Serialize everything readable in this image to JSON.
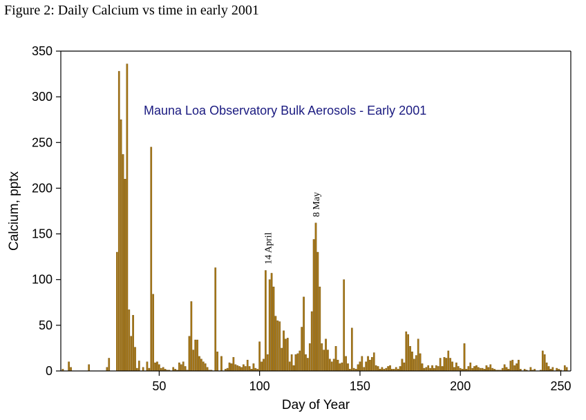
{
  "figure_caption": "Figure 2: Daily Calcium vs time in early 2001",
  "colors": {
    "bar": "#a87816",
    "bar_edge": "#6b4a08",
    "title": "#1a1a80",
    "axis": "#000000"
  },
  "chart_data": {
    "type": "bar",
    "title": "Mauna Loa Observatory Bulk Aerosols - Early 2001",
    "xlabel": "Day of Year",
    "ylabel": "Calcium, pptx",
    "xlim": [
      1,
      255
    ],
    "ylim": [
      0,
      350
    ],
    "xticks": [
      50,
      100,
      150,
      200,
      250
    ],
    "yticks": [
      0,
      50,
      100,
      150,
      200,
      250,
      300,
      350
    ],
    "grid": false,
    "annotations": [
      {
        "text": "14 April",
        "x": 104,
        "y": 112
      },
      {
        "text": "8 May",
        "x": 128,
        "y": 164
      }
    ],
    "x": [
      2,
      5,
      6,
      15,
      24,
      25,
      29,
      30,
      31,
      32,
      33,
      34,
      35,
      36,
      37,
      38,
      39,
      40,
      42,
      44,
      45,
      46,
      47,
      48,
      49,
      50,
      51,
      52,
      53,
      54,
      55,
      57,
      58,
      59,
      60,
      61,
      62,
      63,
      64,
      65,
      66,
      67,
      68,
      69,
      70,
      71,
      72,
      73,
      74,
      75,
      76,
      78,
      79,
      81,
      83,
      84,
      85,
      86,
      87,
      88,
      89,
      90,
      91,
      92,
      93,
      94,
      95,
      96,
      97,
      98,
      99,
      100,
      101,
      102,
      103,
      104,
      105,
      106,
      107,
      108,
      109,
      110,
      111,
      112,
      113,
      114,
      115,
      116,
      117,
      118,
      119,
      120,
      121,
      122,
      123,
      124,
      125,
      126,
      127,
      128,
      129,
      130,
      131,
      132,
      133,
      134,
      135,
      136,
      137,
      138,
      139,
      140,
      141,
      142,
      143,
      144,
      145,
      146,
      147,
      148,
      149,
      150,
      151,
      152,
      153,
      154,
      155,
      156,
      157,
      158,
      159,
      160,
      161,
      162,
      163,
      164,
      165,
      166,
      167,
      168,
      169,
      170,
      171,
      172,
      173,
      174,
      175,
      176,
      177,
      178,
      179,
      180,
      181,
      182,
      183,
      184,
      185,
      186,
      187,
      188,
      189,
      190,
      191,
      192,
      193,
      194,
      195,
      196,
      197,
      198,
      199,
      200,
      201,
      202,
      203,
      204,
      205,
      206,
      207,
      208,
      209,
      210,
      211,
      212,
      213,
      214,
      215,
      216,
      217,
      218,
      219,
      220,
      221,
      222,
      223,
      224,
      225,
      226,
      227,
      228,
      229,
      230,
      232,
      233,
      235,
      236,
      237,
      240,
      241,
      242,
      243,
      244,
      245,
      246,
      248,
      249,
      250,
      252,
      253
    ],
    "values": [
      2,
      10,
      4,
      7,
      4,
      14,
      130,
      328,
      275,
      237,
      210,
      336,
      67,
      38,
      61,
      26,
      3,
      11,
      4,
      10,
      3,
      245,
      84,
      9,
      10,
      7,
      3,
      4,
      2,
      1,
      1,
      4,
      2,
      1,
      9,
      7,
      10,
      5,
      1,
      38,
      76,
      23,
      34,
      34,
      16,
      13,
      10,
      8,
      4,
      1,
      1,
      113,
      21,
      16,
      2,
      3,
      9,
      8,
      15,
      7,
      6,
      5,
      4,
      7,
      5,
      12,
      5,
      2,
      8,
      3,
      2,
      32,
      10,
      13,
      110,
      18,
      100,
      107,
      92,
      60,
      55,
      54,
      25,
      44,
      35,
      36,
      10,
      18,
      6,
      18,
      19,
      22,
      48,
      81,
      18,
      14,
      30,
      65,
      144,
      162,
      130,
      92,
      30,
      23,
      35,
      23,
      13,
      10,
      13,
      27,
      12,
      8,
      9,
      100,
      16,
      8,
      2,
      47,
      3,
      2,
      7,
      10,
      16,
      4,
      10,
      16,
      12,
      15,
      20,
      6,
      5,
      2,
      4,
      2,
      3,
      5,
      6,
      2,
      2,
      4,
      2,
      5,
      13,
      9,
      43,
      40,
      27,
      21,
      13,
      17,
      35,
      19,
      8,
      3,
      4,
      6,
      3,
      6,
      3,
      6,
      5,
      14,
      5,
      15,
      14,
      22,
      14,
      10,
      4,
      9,
      5,
      3,
      2,
      30,
      2,
      5,
      9,
      3,
      5,
      6,
      4,
      3,
      3,
      2,
      6,
      4,
      7,
      3,
      2,
      1,
      1,
      1,
      3,
      7,
      4,
      2,
      11,
      12,
      6,
      8,
      12,
      2,
      2,
      1,
      4,
      1,
      2,
      1,
      22,
      18,
      9,
      5,
      2,
      4,
      3,
      2,
      1,
      6,
      4
    ]
  }
}
